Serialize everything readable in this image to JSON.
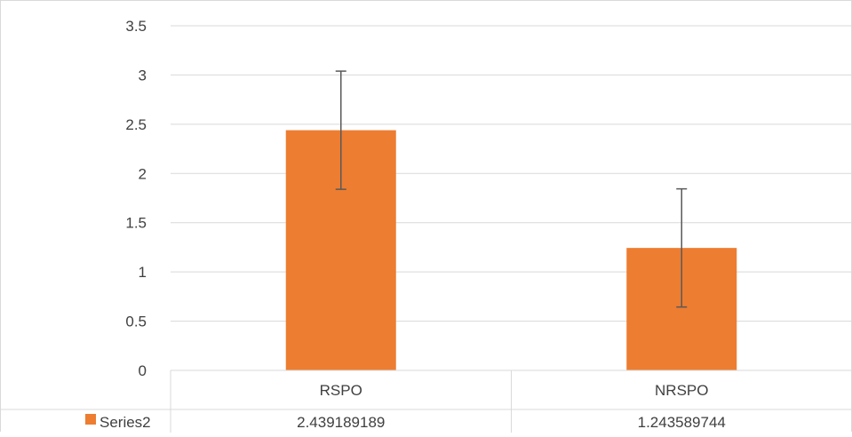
{
  "chart_data": {
    "type": "bar",
    "title": "",
    "xlabel": "",
    "ylabel": "",
    "categories": [
      "RSPO",
      "NRSPO"
    ],
    "series": [
      {
        "name": "Series2",
        "color": "#ED7D31",
        "values": [
          2.439189189,
          1.243589744
        ],
        "value_labels": [
          "2.439189189",
          "1.243589744"
        ],
        "error_bars": {
          "plus": [
            0.6,
            0.6
          ],
          "minus": [
            0.6,
            0.6
          ]
        }
      }
    ],
    "ylim": [
      0,
      3.5
    ],
    "yticks": [
      0,
      0.5,
      1,
      1.5,
      2,
      2.5,
      3,
      3.5
    ],
    "ytick_labels": [
      "0",
      "0.5",
      "1",
      "1.5",
      "2",
      "2.5",
      "3",
      "3.5"
    ],
    "grid": true,
    "legend": "data-table",
    "data_table": true
  }
}
